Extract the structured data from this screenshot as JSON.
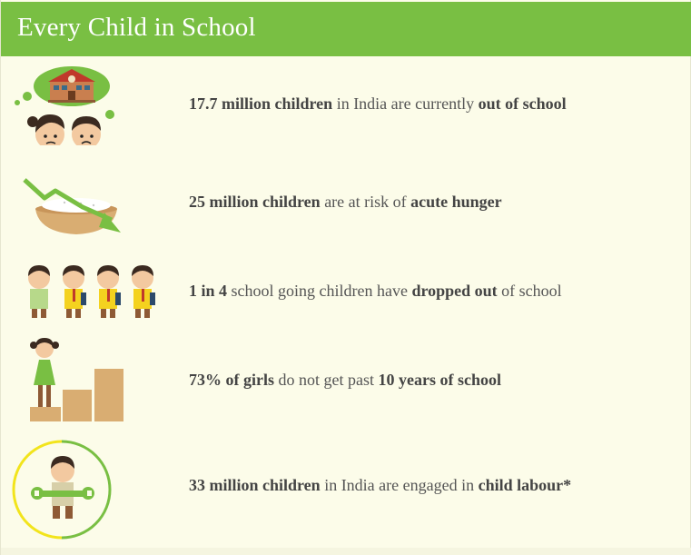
{
  "header": {
    "title": "Every Child in School"
  },
  "colors": {
    "header_green": "#79bf43",
    "background": "#fcfce9",
    "text": "#555555"
  },
  "stats": [
    {
      "icon": "out-of-school-children-icon",
      "parts": [
        "17.7 million children",
        " in India are currently ",
        "out of school"
      ]
    },
    {
      "icon": "acute-hunger-icon",
      "parts": [
        "25 million children",
        " are at risk of ",
        "acute hunger"
      ]
    },
    {
      "icon": "dropout-children-icon",
      "parts": [
        "1 in 4",
        " school going children have ",
        "dropped out",
        " of school"
      ]
    },
    {
      "icon": "girls-education-steps-icon",
      "parts": [
        "73% of girls",
        " do not get past ",
        "10 years of school"
      ]
    },
    {
      "icon": "child-labour-icon",
      "parts": [
        "33 million children",
        " in India are engaged in ",
        "child labour*"
      ]
    }
  ]
}
